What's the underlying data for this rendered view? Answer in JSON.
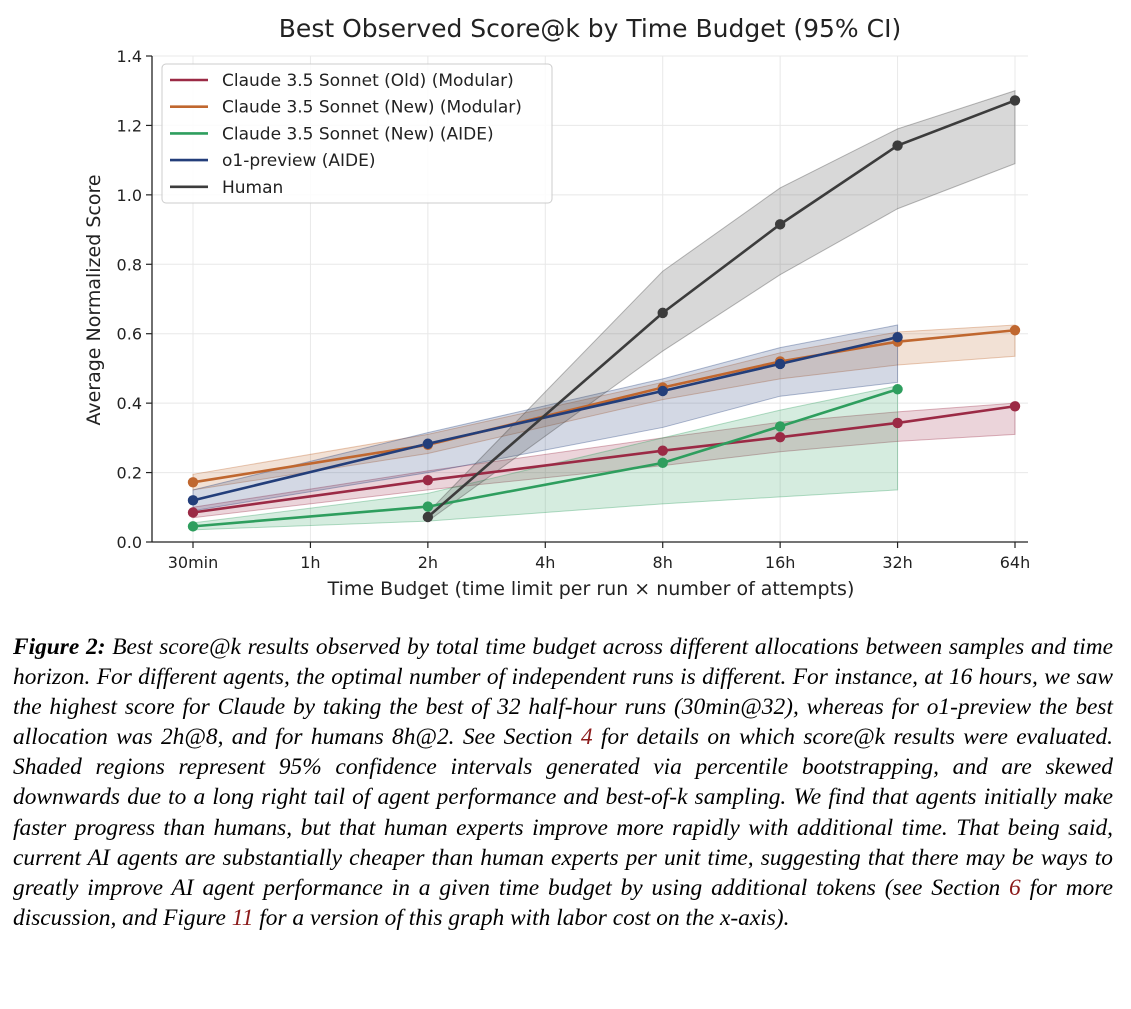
{
  "chart_data": {
    "type": "line",
    "title": "Best Observed Score@k by Time Budget (95% CI)",
    "xlabel": "Time Budget (time limit per run × number of attempts)",
    "ylabel": "Average Normalized Score",
    "categories": [
      "30min",
      "1h",
      "2h",
      "4h",
      "8h",
      "16h",
      "32h",
      "64h"
    ],
    "x_scale": "log2",
    "ylim": [
      0,
      1.4
    ],
    "yticks": [
      "0.0",
      "0.2",
      "0.4",
      "0.6",
      "0.8",
      "1.0",
      "1.2",
      "1.4"
    ],
    "grid": true,
    "legend_position": "top-left",
    "series": [
      {
        "name": "Claude 3.5 Sonnet (Old) (Modular)",
        "color": "#9b2a45",
        "x": [
          "30min",
          "2h",
          "8h",
          "16h",
          "32h",
          "64h"
        ],
        "y": [
          0.085,
          0.178,
          0.263,
          0.302,
          0.343,
          0.391
        ],
        "ci_low": [
          0.07,
          0.15,
          0.22,
          0.26,
          0.29,
          0.31
        ],
        "ci_high": [
          0.1,
          0.205,
          0.3,
          0.345,
          0.375,
          0.4
        ]
      },
      {
        "name": "Claude 3.5 Sonnet (New) (Modular)",
        "color": "#c0672f",
        "x": [
          "30min",
          "2h",
          "8h",
          "16h",
          "32h",
          "64h"
        ],
        "y": [
          0.172,
          0.28,
          0.445,
          0.52,
          0.577,
          0.61
        ],
        "ci_low": [
          0.15,
          0.255,
          0.41,
          0.47,
          0.51,
          0.535
        ],
        "ci_high": [
          0.195,
          0.31,
          0.46,
          0.545,
          0.605,
          0.625
        ]
      },
      {
        "name": "Claude 3.5 Sonnet (New) (AIDE)",
        "color": "#2e9e5e",
        "x": [
          "30min",
          "2h",
          "8h",
          "16h",
          "32h"
        ],
        "y": [
          0.045,
          0.102,
          0.228,
          0.333,
          0.44
        ],
        "ci_low": [
          0.035,
          0.06,
          0.11,
          0.13,
          0.15
        ],
        "ci_high": [
          0.055,
          0.14,
          0.3,
          0.38,
          0.45
        ]
      },
      {
        "name": "o1-preview (AIDE)",
        "color": "#233e7a",
        "x": [
          "30min",
          "2h",
          "8h",
          "16h",
          "32h"
        ],
        "y": [
          0.12,
          0.283,
          0.435,
          0.513,
          0.59
        ],
        "ci_low": [
          0.09,
          0.2,
          0.33,
          0.42,
          0.46
        ],
        "ci_high": [
          0.15,
          0.315,
          0.47,
          0.56,
          0.625
        ]
      },
      {
        "name": "Human",
        "color": "#3c3c3c",
        "x": [
          "2h",
          "8h",
          "16h",
          "32h",
          "64h"
        ],
        "y": [
          0.072,
          0.66,
          0.915,
          1.142,
          1.272
        ],
        "ci_low": [
          0.06,
          0.55,
          0.77,
          0.96,
          1.09
        ],
        "ci_high": [
          0.085,
          0.78,
          1.02,
          1.19,
          1.3
        ]
      }
    ]
  },
  "caption": {
    "label": "Figure 2:",
    "text_1": " Best score@",
    "k_1": "k",
    "text_2": " results observed by total time budget across different allocations between samples and time horizon. For different agents, the optimal number of independent runs is different. For instance, at 16 hours, we saw the highest score for Claude by taking the best of 32 half-hour runs (30min@32), whereas for o1-preview the best allocation was 2h@8, and for humans 8h@2. See Section ",
    "ref_section_4": "4",
    "text_3": " for details on which score@",
    "k_2": "k",
    "text_4": " results were evaluated. Shaded regions represent 95% confidence intervals generated via percentile bootstrapping, and are skewed downwards due to a long right tail of agent performance and best-of-",
    "k_3": "k",
    "text_5": " sampling. We find that agents initially make faster progress than humans, but that human experts improve more rapidly with additional time. That being said, current AI agents are substantially cheaper than human experts per unit time, suggesting that there may be ways to greatly improve AI agent performance in a given time budget by using additional tokens (see Section ",
    "ref_section_6": "6",
    "text_6": " for more discussion, and Figure ",
    "ref_figure_11": "11",
    "text_7": " for a version of this graph with labor cost on the ",
    "x_axis_var": "x",
    "text_8": "-axis)."
  }
}
